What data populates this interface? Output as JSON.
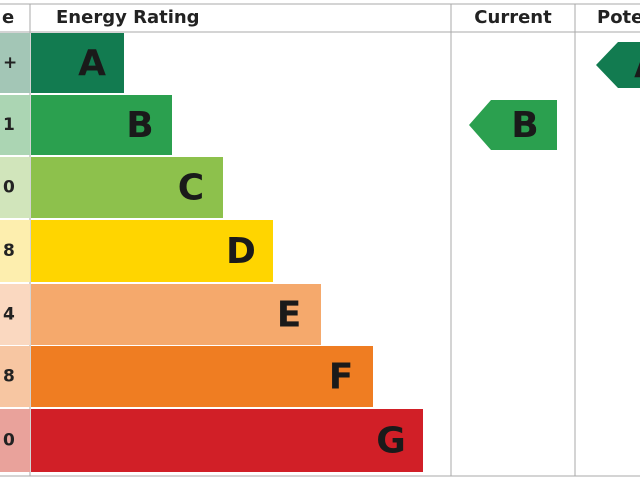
{
  "header": {
    "score": "e",
    "rating": "Energy Rating",
    "current": "Current",
    "potential": "Pote"
  },
  "bands": [
    {
      "letter": "A",
      "score": "+",
      "color": "#127b50",
      "tint": "#a3c6b6"
    },
    {
      "letter": "B",
      "score": "1",
      "color": "#2ba04f",
      "tint": "#abd5b3"
    },
    {
      "letter": "C",
      "score": "0",
      "color": "#8dc14c",
      "tint": "#d1e5bb"
    },
    {
      "letter": "D",
      "score": "8",
      "color": "#ffd500",
      "tint": "#fdeeae"
    },
    {
      "letter": "E",
      "score": "4",
      "color": "#f5a96c",
      "tint": "#fad8c0"
    },
    {
      "letter": "F",
      "score": "8",
      "color": "#ef7d22",
      "tint": "#f7c6a2"
    },
    {
      "letter": "G",
      "score": "0",
      "color": "#d11f27",
      "tint": "#e9a29b"
    }
  ],
  "current": {
    "letter": "B",
    "color": "#2ba04f"
  },
  "potential": {
    "letter": "A",
    "color": "#127b50"
  }
}
